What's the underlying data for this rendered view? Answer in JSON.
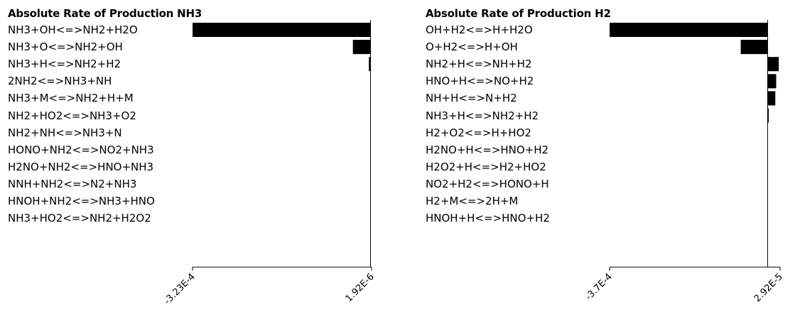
{
  "chart_data": [
    {
      "type": "bar",
      "orientation": "horizontal",
      "title": "Absolute Rate of Production NH3",
      "categories": [
        "NH3+OH<=>NH2+H2O",
        "NH3+O<=>NH2+OH",
        "NH3+H<=>NH2+H2",
        "2NH2<=>NH3+NH",
        "NH3+M<=>NH2+H+M",
        "NH2+HO2<=>NH3+O2",
        "NH2+NH<=>NH3+N",
        "HONO+NH2<=>NO2+NH3",
        "H2NO+NH2<=>HNO+NH3",
        "NNH+NH2<=>N2+NH3",
        "HNOH+NH2<=>NH3+HNO",
        "NH3+HO2<=>NH2+H2O2"
      ],
      "values": [
        -0.000323,
        -3.2e-05,
        -3e-06,
        0,
        0,
        0,
        0,
        0,
        0,
        0,
        0,
        0
      ],
      "xlim": [
        -0.000323,
        1.92e-06
      ],
      "tick_labels": [
        "-3.23E-4",
        "1.92E-6"
      ],
      "bar_color": "#000000"
    },
    {
      "type": "bar",
      "orientation": "horizontal",
      "title": "Absolute Rate of Production H2",
      "categories": [
        "OH+H2<=>H+H2O",
        "O+H2<=>H+OH",
        "NH2+H<=>NH+H2",
        "HNO+H<=>NO+H2",
        "NH+H<=>N+H2",
        "NH3+H<=>NH2+H2",
        "H2+O2<=>H+HO2",
        "H2NO+H<=>HNO+H2",
        "H2O2+H<=>H2+HO2",
        "NO2+H2<=>HONO+H",
        "H2+M<=>2H+M",
        "HNOH+H<=>HNO+H2"
      ],
      "values": [
        -0.00037,
        -6.3e-05,
        2.6e-05,
        2e-05,
        1.8e-05,
        2.5e-06,
        0,
        0,
        0,
        0,
        0,
        0
      ],
      "xlim": [
        -0.00037,
        2.92e-05
      ],
      "tick_labels": [
        "-3.7E-4",
        "2.92E-5"
      ],
      "bar_color": "#000000"
    }
  ]
}
